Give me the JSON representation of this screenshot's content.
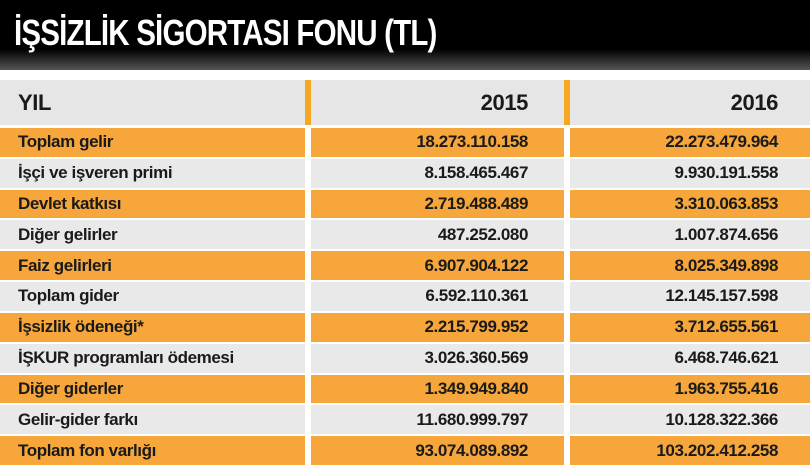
{
  "header": {
    "title": "İŞSİZLİK SİGORTASI FONU (TL)"
  },
  "table": {
    "columns": [
      "YIL",
      "2015",
      "2016"
    ],
    "rows": [
      [
        "Toplam gelir",
        "18.273.110.158",
        "22.273.479.964"
      ],
      [
        "İşçi ve işveren primi",
        "8.158.465.467",
        "9.930.191.558"
      ],
      [
        "Devlet katkısı",
        "2.719.488.489",
        "3.310.063.853"
      ],
      [
        "Diğer gelirler",
        "487.252.080",
        "1.007.874.656"
      ],
      [
        "Faiz gelirleri",
        "6.907.904.122",
        "8.025.349.898"
      ],
      [
        "Toplam gider",
        "6.592.110.361",
        "12.145.157.598"
      ],
      [
        "İşsizlik ödeneği*",
        "2.215.799.952",
        "3.712.655.561"
      ],
      [
        "İŞKUR programları ödemesi",
        "3.026.360.569",
        "6.468.746.621"
      ],
      [
        "Diğer giderler",
        "1.349.949.840",
        "1.963.755.416"
      ],
      [
        "Gelir-gider farkı",
        "11.680.999.797",
        "10.128.322.366"
      ],
      [
        "Toplam fon varlığı",
        "93.074.089.892",
        "103.202.412.258"
      ]
    ]
  }
}
